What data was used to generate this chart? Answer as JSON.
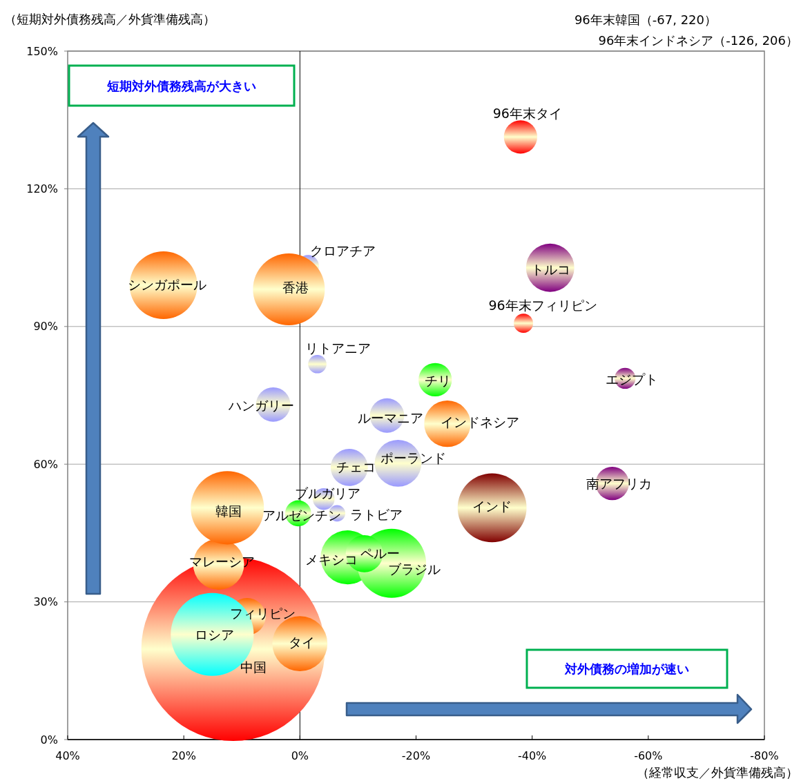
{
  "chart_data": {
    "type": "bubble",
    "ylabel": "（短期対外債務残高／外貨準備残高）",
    "xlabel": "（経常収支／外貨準備残高）",
    "xlim": [
      40,
      -80
    ],
    "xticks": [
      {
        "value": 40,
        "label": "40%"
      },
      {
        "value": 20,
        "label": "20%"
      },
      {
        "value": 0,
        "label": "0%"
      },
      {
        "value": -20,
        "label": "-20%"
      },
      {
        "value": -40,
        "label": "-40%"
      },
      {
        "value": -60,
        "label": "-60%"
      },
      {
        "value": -80,
        "label": "-80%"
      }
    ],
    "ylim": [
      0,
      150
    ],
    "yticks": [
      {
        "value": 0,
        "label": "0%"
      },
      {
        "value": 30,
        "label": "30%"
      },
      {
        "value": 60,
        "label": "60%"
      },
      {
        "value": 90,
        "label": "90%"
      },
      {
        "value": 120,
        "label": "120%"
      },
      {
        "value": 150,
        "label": "150%"
      }
    ],
    "grid": "y",
    "ref_lines": [
      {
        "axis": "x",
        "value": 0,
        "color": "#000000"
      }
    ],
    "annotations": [
      "96年末韓国（-67, 220）",
      "96年末インドネシア（-126, 206）",
      "短期対外債務残高が大きい",
      "対外債務の増加が速い"
    ],
    "series": [
      {
        "name": "中国",
        "color": "#ff0000",
        "x": [
          11.5
        ],
        "values": [
          19.7
        ],
        "sizes": [
          1
        ]
      },
      {
        "name": "フィリピン",
        "color": "#ff6600",
        "x": [
          9.1
        ],
        "values": [
          26.8
        ],
        "sizes": [
          0.041
        ]
      },
      {
        "name": "ロシア",
        "color": "#00ffff",
        "x": [
          15.1
        ],
        "values": [
          22.9
        ],
        "sizes": [
          0.204
        ]
      },
      {
        "name": "マレーシア",
        "color": "#ff6600",
        "x": [
          14.0
        ],
        "values": [
          38.2
        ],
        "sizes": [
          0.077
        ]
      },
      {
        "name": "韓国",
        "color": "#ff6600",
        "x": [
          12.5
        ],
        "values": [
          50.5
        ],
        "sizes": [
          0.159
        ]
      },
      {
        "name": "タイ",
        "color": "#ff6600",
        "x": [
          0.0
        ],
        "values": [
          20.9
        ],
        "sizes": [
          0.09
        ]
      },
      {
        "name": "クロアチア",
        "color": "#9999ff",
        "x": [
          -1.4
        ],
        "values": [
          103.2
        ],
        "sizes": [
          0.014
        ]
      },
      {
        "name": "香港",
        "color": "#ff6600",
        "x": [
          1.9
        ],
        "values": [
          98.1
        ],
        "sizes": [
          0.153
        ]
      },
      {
        "name": "シンガポール",
        "color": "#ff6600",
        "x": [
          23.5
        ],
        "values": [
          99.0
        ],
        "sizes": [
          0.136
        ]
      },
      {
        "name": "ハンガリー",
        "color": "#9999ff",
        "x": [
          4.6
        ],
        "values": [
          73.0
        ],
        "sizes": [
          0.035
        ]
      },
      {
        "name": "リトアニア",
        "color": "#9999ff",
        "x": [
          -3.0
        ],
        "values": [
          81.8
        ],
        "sizes": [
          0.01
        ]
      },
      {
        "name": "アルゼンチン",
        "color": "#00ff00",
        "x": [
          0.3
        ],
        "values": [
          49.3
        ],
        "sizes": [
          0.02
        ]
      },
      {
        "name": "ブルガリア",
        "color": "#9999ff",
        "x": [
          -4.1
        ],
        "values": [
          52.4
        ],
        "sizes": [
          0.014
        ]
      },
      {
        "name": "ラトビア",
        "color": "#9999ff",
        "x": [
          -6.4
        ],
        "values": [
          49.3
        ],
        "sizes": [
          0.008
        ]
      },
      {
        "name": "メキシコ",
        "color": "#00ff00",
        "x": [
          -8.2
        ],
        "values": [
          39.7
        ],
        "sizes": [
          0.086
        ]
      },
      {
        "name": "ブラジル",
        "color": "#00ff00",
        "x": [
          -15.8
        ],
        "values": [
          38.4
        ],
        "sizes": [
          0.141
        ]
      },
      {
        "name": "ペルー",
        "color": "#00ff00",
        "x": [
          -11.1
        ],
        "values": [
          40.5
        ],
        "sizes": [
          0.041
        ]
      },
      {
        "name": "チェコ",
        "color": "#9999ff",
        "x": [
          -8.5
        ],
        "values": [
          59.3
        ],
        "sizes": [
          0.041
        ]
      },
      {
        "name": "ポーランド",
        "color": "#9999ff",
        "x": [
          -16.9
        ],
        "values": [
          60.2
        ],
        "sizes": [
          0.065
        ]
      },
      {
        "name": "ルーマニア",
        "color": "#9999ff",
        "x": [
          -15.0
        ],
        "values": [
          70.6
        ],
        "sizes": [
          0.035
        ]
      },
      {
        "name": "チリ",
        "color": "#00ff00",
        "x": [
          -23.3
        ],
        "values": [
          78.4
        ],
        "sizes": [
          0.033
        ]
      },
      {
        "name": "インドネシア",
        "color": "#ff6600",
        "x": [
          -25.4
        ],
        "values": [
          68.8
        ],
        "sizes": [
          0.064
        ]
      },
      {
        "name": "インド",
        "color": "#800000",
        "x": [
          -33.1
        ],
        "values": [
          50.5
        ],
        "sizes": [
          0.141
        ]
      },
      {
        "name": "南アフリカ",
        "color": "#800080",
        "x": [
          -53.8
        ],
        "values": [
          55.8
        ],
        "sizes": [
          0.033
        ]
      },
      {
        "name": "エジプト",
        "color": "#800080",
        "x": [
          -56.0
        ],
        "values": [
          78.7
        ],
        "sizes": [
          0.013
        ]
      },
      {
        "name": "トルコ",
        "color": "#800080",
        "x": [
          -43.1
        ],
        "values": [
          102.8
        ],
        "sizes": [
          0.069
        ]
      },
      {
        "name": "96年末フィリピン",
        "color": "#ff0000",
        "x": [
          -38.5
        ],
        "values": [
          90.7
        ],
        "sizes": [
          0.011
        ]
      },
      {
        "name": "96年末タイ",
        "color": "#ff0000",
        "x": [
          -38.0
        ],
        "values": [
          131.3
        ],
        "sizes": [
          0.033
        ]
      }
    ]
  }
}
